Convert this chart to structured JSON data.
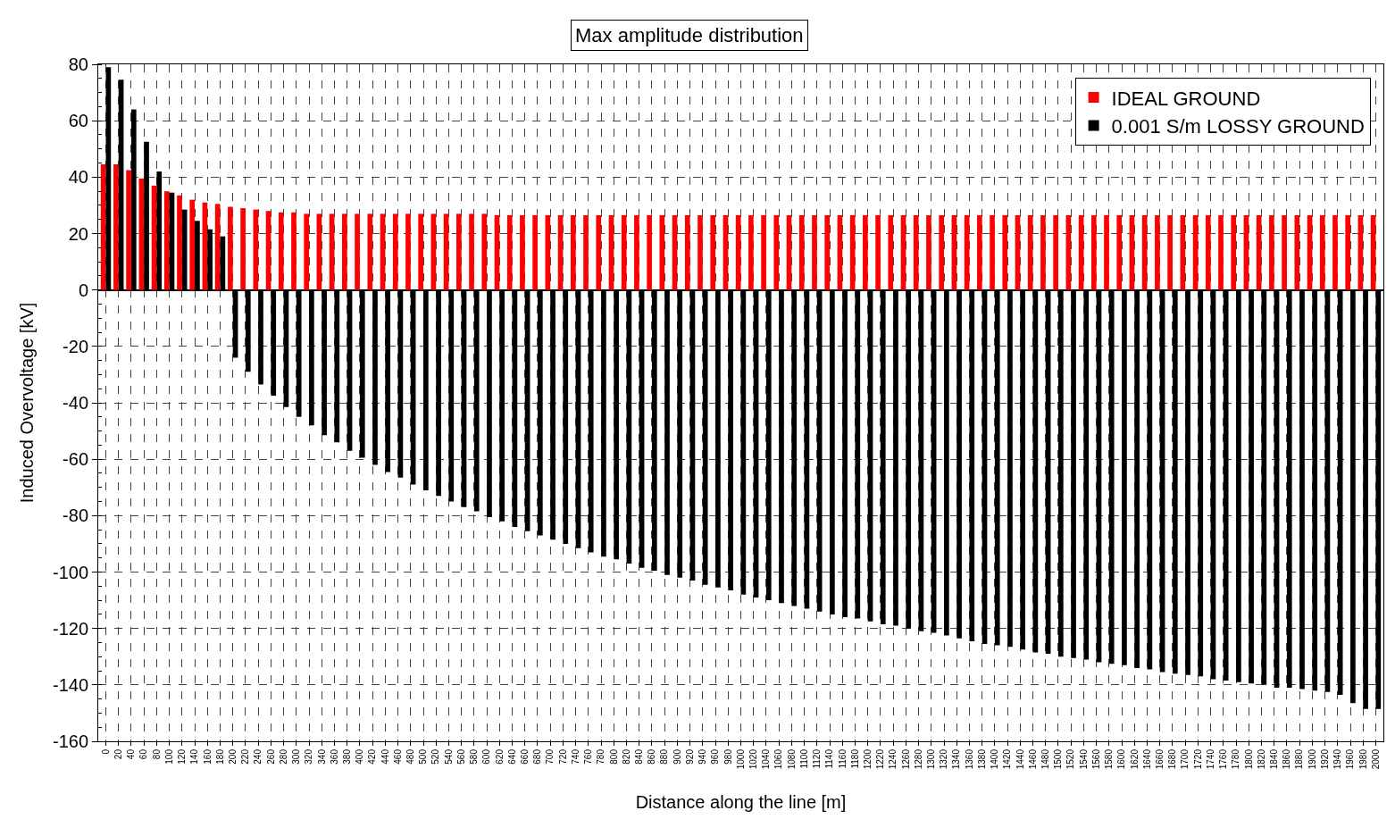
{
  "chart_data": {
    "type": "bar",
    "title": "Max amplitude distribution",
    "xlabel": "Distance along the line [m]",
    "ylabel": "Induced Overvoltage [kV]",
    "categories": [
      "0",
      "20",
      "40",
      "60",
      "80",
      "100",
      "120",
      "140",
      "160",
      "180",
      "200",
      "220",
      "240",
      "260",
      "280",
      "300",
      "320",
      "340",
      "360",
      "380",
      "400",
      "420",
      "440",
      "460",
      "480",
      "500",
      "520",
      "540",
      "560",
      "580",
      "600",
      "620",
      "640",
      "660",
      "680",
      "700",
      "720",
      "740",
      "760",
      "780",
      "800",
      "820",
      "840",
      "860",
      "880",
      "900",
      "920",
      "940",
      "960",
      "980",
      "1000",
      "1020",
      "1040",
      "1060",
      "1080",
      "1100",
      "1120",
      "1140",
      "1160",
      "1180",
      "1200",
      "1220",
      "1240",
      "1260",
      "1280",
      "1300",
      "1320",
      "1340",
      "1360",
      "1380",
      "1400",
      "1420",
      "1440",
      "1460",
      "1480",
      "1500",
      "1520",
      "1540",
      "1560",
      "1580",
      "1600",
      "1620",
      "1640",
      "1660",
      "1680",
      "1700",
      "1720",
      "1740",
      "1760",
      "1780",
      "1800",
      "1820",
      "1840",
      "1860",
      "1880",
      "1900",
      "1920",
      "1940",
      "1960",
      "1980",
      "2000"
    ],
    "series": [
      {
        "name": "IDEAL GROUND",
        "color": "#ff0000",
        "values": [
          44.5,
          44.5,
          42.5,
          39.5,
          37,
          35,
          33.5,
          32,
          31,
          30.5,
          29.5,
          29,
          28.5,
          28,
          27.5,
          27.5,
          27,
          27,
          27,
          27,
          27,
          27,
          27,
          27,
          27,
          27,
          27,
          27,
          27,
          27,
          27,
          26.5,
          26.5,
          26.5,
          26.5,
          26.5,
          26.5,
          26.5,
          26.5,
          26.5,
          26.5,
          26.5,
          26.5,
          26.5,
          26.5,
          26.5,
          26.5,
          26.5,
          26.5,
          26.5,
          26.5,
          26.5,
          26.5,
          26.5,
          26.5,
          26.5,
          26.5,
          26.5,
          26.5,
          26.5,
          26.5,
          26.5,
          26.5,
          26.5,
          26.5,
          26.5,
          26.5,
          26.5,
          26.5,
          26.5,
          26.5,
          26.5,
          26.5,
          26.5,
          26.5,
          26.5,
          26.5,
          26.5,
          26.5,
          26.5,
          26.5,
          26.5,
          26.5,
          26.5,
          26.5,
          26.5,
          26.5,
          26.5,
          26.5,
          26.5,
          26.5,
          26.5,
          26.5,
          26.5,
          26.5,
          26.5,
          26.5,
          26.5,
          26.5,
          26.5,
          26.5
        ]
      },
      {
        "name": "0.001 S/m LOSSY GROUND",
        "color": "#000000",
        "values": [
          79,
          74.5,
          64,
          52.5,
          42,
          34.5,
          28.5,
          24.5,
          21.5,
          19,
          -24,
          -29,
          -33.5,
          -37.5,
          -41.5,
          -45,
          -48,
          -51.5,
          -54,
          -57,
          -59.5,
          -62,
          -64.5,
          -66.5,
          -69,
          -71,
          -73,
          -75,
          -77,
          -78.5,
          -80.5,
          -82,
          -84,
          -85.5,
          -87,
          -88.5,
          -90,
          -91.5,
          -93,
          -94.5,
          -95.5,
          -97,
          -98.5,
          -99.5,
          -101,
          -102,
          -103,
          -104.5,
          -105.5,
          -106.5,
          -108,
          -109,
          -110,
          -111,
          -112,
          -113,
          -114,
          -115,
          -116,
          -116.5,
          -117.5,
          -118.5,
          -119,
          -120,
          -121,
          -121.5,
          -122.5,
          -123.5,
          -124.5,
          -125.5,
          -126,
          -126.5,
          -127.5,
          -128.5,
          -129,
          -130,
          -130.5,
          -131,
          -132,
          -132.5,
          -133,
          -134,
          -134.5,
          -135.5,
          -136,
          -136.5,
          -137,
          -138,
          -138.5,
          -139,
          -139.5,
          -140,
          -141,
          -141,
          -141.5,
          -142,
          -142.5,
          -143.5,
          -146.5,
          -148.5,
          -148.5
        ]
      }
    ],
    "ylim": [
      -160,
      80
    ],
    "yticks": [
      -160,
      -140,
      -120,
      -100,
      -80,
      -60,
      -40,
      -20,
      0,
      20,
      40,
      60,
      80
    ],
    "grid": true,
    "legend": "top right"
  }
}
